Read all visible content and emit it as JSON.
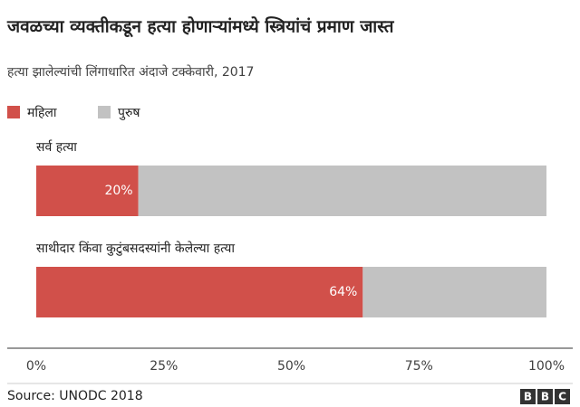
{
  "chart_data": {
    "type": "stacked-bar-horizontal",
    "title": "जवळच्या व्यक्तीकडून हत्या होणाऱ्यांमध्ये स्त्रियांचं प्रमाण जास्त",
    "subtitle": "हत्या झालेल्यांची लिंगाधारित अंदाजे टक्केवारी, 2017",
    "categories": [
      "सर्व हत्या",
      "साथीदार किंवा कुटुंबसदस्यांनी केलेल्या हत्या"
    ],
    "series": [
      {
        "name": "महिला",
        "color": "#d1504a",
        "values": [
          20,
          64
        ],
        "value_labels": [
          "20%",
          "64%"
        ]
      },
      {
        "name": "पुरुष",
        "color": "#c2c2c2",
        "values": [
          80,
          36
        ]
      }
    ],
    "xlim": [
      0,
      100
    ],
    "xticks": [
      {
        "value": 0,
        "label": "0%"
      },
      {
        "value": 25,
        "label": "25%"
      },
      {
        "value": 50,
        "label": "50%"
      },
      {
        "value": 75,
        "label": "75%"
      },
      {
        "value": 100,
        "label": "100%"
      }
    ],
    "source": "Source: UNODC 2018",
    "logo": "BBC"
  }
}
